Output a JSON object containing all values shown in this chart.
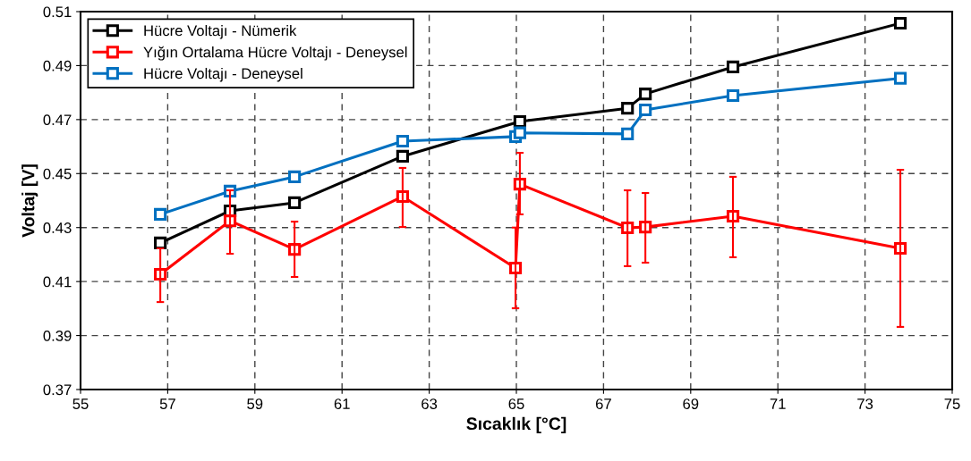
{
  "chart_data": {
    "type": "line",
    "xlabel": "Sıcaklık [°C]",
    "ylabel": "Voltaj [V]",
    "xlim": [
      55,
      75
    ],
    "xticks": [
      55,
      57,
      59,
      61,
      63,
      65,
      67,
      69,
      71,
      73,
      75
    ],
    "ylim": [
      0.37,
      0.51
    ],
    "yticks": [
      0.37,
      0.39,
      0.41,
      0.43,
      0.45,
      0.47,
      0.49,
      0.51
    ],
    "grid": true,
    "legend": "top left",
    "marker": "square",
    "line_style": "solid",
    "series": [
      {
        "name": "Hücre Voltajı - Nümerik",
        "color": "#000000",
        "x": [
          56.83,
          58.43,
          59.91,
          62.39,
          65.08,
          67.55,
          67.96,
          69.97,
          73.81
        ],
        "values": [
          0.4243,
          0.4362,
          0.4392,
          0.4564,
          0.4693,
          0.4742,
          0.4795,
          0.4895,
          0.5057
        ]
      },
      {
        "name": "Yığın Ortalama Hücre Voltajı - Deneysel",
        "color": "#ff0000",
        "x": [
          56.83,
          58.43,
          59.91,
          62.39,
          64.98,
          65.08,
          67.55,
          67.96,
          69.97,
          73.81
        ],
        "values": [
          0.4127,
          0.4325,
          0.4219,
          0.4415,
          0.415,
          0.4461,
          0.4299,
          0.4302,
          0.4342,
          0.4223
        ],
        "errors": [
          [
            0.4024,
            0.4223
          ],
          [
            0.4203,
            0.4438
          ],
          [
            0.4117,
            0.4322
          ],
          [
            0.4302,
            0.4521
          ],
          [
            0.4001,
            0.43
          ],
          [
            0.4349,
            0.4577
          ],
          [
            0.4157,
            0.4438
          ],
          [
            0.417,
            0.4428
          ],
          [
            0.419,
            0.4488
          ],
          [
            0.3932,
            0.4514
          ]
        ]
      },
      {
        "name": "Hücre Voltajı - Deneysel",
        "color": "#0070c0",
        "x": [
          56.83,
          58.43,
          59.91,
          62.39,
          64.98,
          65.08,
          67.55,
          67.96,
          69.97,
          73.81
        ],
        "values": [
          0.4349,
          0.4435,
          0.4488,
          0.462,
          0.4637,
          0.4651,
          0.4647,
          0.4736,
          0.4789,
          0.4853
        ]
      }
    ]
  }
}
